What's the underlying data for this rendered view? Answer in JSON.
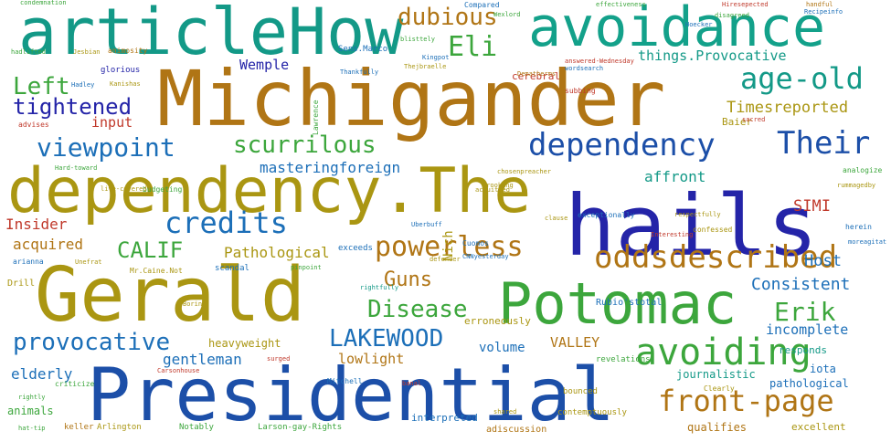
{
  "words": [
    {
      "text": "Michigander",
      "color": "#b07515"
    },
    {
      "text": "Presidential",
      "color": "#1c4fa8"
    },
    {
      "text": "dependency.The",
      "color": "#aa9612"
    },
    {
      "text": "Gerald",
      "color": "#aa9612"
    },
    {
      "text": "hails",
      "color": "#2424a8"
    },
    {
      "text": "articleHow",
      "color": "#139987"
    },
    {
      "text": "Potomac",
      "color": "#3ca63c"
    },
    {
      "text": "avoidance",
      "color": "#13a18a"
    },
    {
      "text": "avoiding",
      "color": "#3ca63c"
    },
    {
      "text": "dependency",
      "color": "#1c4fa8"
    },
    {
      "text": "oddsdescribed",
      "color": "#b07515"
    },
    {
      "text": "front-page",
      "color": "#b07515"
    },
    {
      "text": "Their",
      "color": "#1c4fa8"
    },
    {
      "text": "age-old",
      "color": "#139987"
    },
    {
      "text": "viewpoint",
      "color": "#1c6fb8"
    },
    {
      "text": "credits",
      "color": "#1c6fb8"
    },
    {
      "text": "powerless",
      "color": "#b07515"
    },
    {
      "text": "scurrilous",
      "color": "#3ca63c"
    },
    {
      "text": "provocative",
      "color": "#1c6fb8"
    },
    {
      "text": "LAKEWOOD",
      "color": "#1c6fb8"
    },
    {
      "text": "Disease",
      "color": "#3ca63c"
    },
    {
      "text": "Erik",
      "color": "#3ca63c"
    },
    {
      "text": "Left",
      "color": "#3ca63c"
    },
    {
      "text": "tightened",
      "color": "#2424a8"
    },
    {
      "text": "dubious",
      "color": "#b07515"
    },
    {
      "text": "Eli",
      "color": "#3ca63c"
    },
    {
      "text": "CALIF",
      "color": "#3ca63c"
    },
    {
      "text": "Guns",
      "color": "#b07515"
    },
    {
      "text": "Consistent",
      "color": "#1c6fb8"
    },
    {
      "text": "things.Provocative",
      "color": "#139987"
    },
    {
      "text": "Timesreported",
      "color": "#aa9612"
    },
    {
      "text": "masteringforeign",
      "color": "#1c6fb8"
    },
    {
      "text": "affront",
      "color": "#139987"
    },
    {
      "text": "Pathological",
      "color": "#aa9612"
    },
    {
      "text": "acquired",
      "color": "#b07515"
    },
    {
      "text": "Insider",
      "color": "#c0392b"
    },
    {
      "text": "Host",
      "color": "#1c6fb8"
    },
    {
      "text": "SIMI",
      "color": "#c0392b"
    },
    {
      "text": "VALLEY",
      "color": "#b07515"
    },
    {
      "text": "incomplete",
      "color": "#1c6fb8"
    },
    {
      "text": "gentleman",
      "color": "#1c6fb8"
    },
    {
      "text": "elderly",
      "color": "#1c6fb8"
    },
    {
      "text": "lowlight",
      "color": "#b07515"
    },
    {
      "text": "volume",
      "color": "#1c6fb8"
    },
    {
      "text": "heavyweight",
      "color": "#aa9612"
    },
    {
      "text": "input",
      "color": "#c0392b"
    },
    {
      "text": "Wemple",
      "color": "#2424a8"
    },
    {
      "text": "Nich",
      "color": "#aa9612"
    },
    {
      "text": "journalistic",
      "color": "#139987"
    },
    {
      "text": "pathological",
      "color": "#1c6fb8"
    },
    {
      "text": "qualifies",
      "color": "#b07515"
    },
    {
      "text": "excellent",
      "color": "#aa9612"
    },
    {
      "text": "animals",
      "color": "#3ca63c"
    },
    {
      "text": "responds",
      "color": "#139987"
    },
    {
      "text": "erroneously",
      "color": "#aa9612"
    },
    {
      "text": "iota",
      "color": "#1c6fb8"
    },
    {
      "text": "Baier",
      "color": "#aa9612"
    },
    {
      "text": "cerebral",
      "color": "#c0392b"
    },
    {
      "text": "Clearly",
      "color": "#aa9612"
    },
    {
      "text": "interpreted",
      "color": "#1c6fb8"
    },
    {
      "text": "adiscussion",
      "color": "#b07515"
    },
    {
      "text": "contemptuously",
      "color": "#aa9612"
    },
    {
      "text": "Arlington",
      "color": "#aa9612"
    },
    {
      "text": "Larson-gay-Rights",
      "color": "#3ca63c"
    },
    {
      "text": "bounced",
      "color": "#aa9612"
    },
    {
      "text": "revelations",
      "color": "#3ca63c"
    },
    {
      "text": "Drill",
      "color": "#aa9612"
    },
    {
      "text": "arianna",
      "color": "#1c6fb8"
    },
    {
      "text": "scandal",
      "color": "#1c6fb8"
    },
    {
      "text": "defender",
      "color": "#aa9612"
    },
    {
      "text": "Compared",
      "color": "#1c6fb8"
    },
    {
      "text": "glorious",
      "color": "#2424a8"
    },
    {
      "text": "advises",
      "color": "#c0392b"
    },
    {
      "text": "animosity",
      "color": "#b07515"
    },
    {
      "text": "exceeds",
      "color": "#1c6fb8"
    },
    {
      "text": "Rubio'stotal",
      "color": "#1c6fb8"
    },
    {
      "text": "exceptionally",
      "color": "#1c6fb8"
    },
    {
      "text": "confessed",
      "color": "#aa9612"
    },
    {
      "text": "Lawrence",
      "color": "#3ca63c"
    },
    {
      "text": "acquitted",
      "color": "#aa9612"
    },
    {
      "text": "Sens.Marco",
      "color": "#1c6fb8"
    },
    {
      "text": "Thankfully",
      "color": "#1c6fb8"
    },
    {
      "text": "Cuomos",
      "color": "#1c6fb8"
    },
    {
      "text": "subbing",
      "color": "#c0392b"
    },
    {
      "text": "blisttely",
      "color": "#3ca63c"
    },
    {
      "text": "Notably",
      "color": "#3ca63c"
    },
    {
      "text": "rightfully",
      "color": "#139987"
    },
    {
      "text": "Mr.Caine.Not",
      "color": "#aa9612"
    },
    {
      "text": "Mitchell",
      "color": "#1c6fb8"
    },
    {
      "text": "keller",
      "color": "#b07515"
    },
    {
      "text": "criticize",
      "color": "#3ca63c"
    },
    {
      "text": "analogize",
      "color": "#3ca63c"
    },
    {
      "text": "herein",
      "color": "#1c6fb8"
    },
    {
      "text": "moreagitat",
      "color": "#1c6fb8"
    },
    {
      "text": "sacred",
      "color": "#c0392b"
    },
    {
      "text": "budgeting",
      "color": "#3ca63c"
    },
    {
      "text": "Kanishas",
      "color": "#aa9612"
    },
    {
      "text": "Hadley",
      "color": "#1c6fb8"
    },
    {
      "text": "Jesbian",
      "color": "#aa9612"
    },
    {
      "text": "hadlifted",
      "color": "#3ca63c"
    },
    {
      "text": "Thejbraelle",
      "color": "#aa9612"
    },
    {
      "text": "condemnation",
      "color": "#3ca63c"
    },
    {
      "text": "effectiveness",
      "color": "#3ca63c"
    },
    {
      "text": "Hiresepected",
      "color": "#c0392b"
    },
    {
      "text": "handful",
      "color": "#b07515"
    },
    {
      "text": "CNNyesterday",
      "color": "#1c6fb8"
    },
    {
      "text": "shared",
      "color": "#aa9612"
    },
    {
      "text": "rightly",
      "color": "#3ca63c"
    },
    {
      "text": "hat-tip",
      "color": "#3ca63c"
    },
    {
      "text": "Carsonhouse",
      "color": "#c0392b"
    },
    {
      "text": "Uberbuff",
      "color": "#1c6fb8"
    },
    {
      "text": "Unefrat",
      "color": "#aa9612"
    },
    {
      "text": "banal",
      "color": "#c0392b"
    },
    {
      "text": "surged",
      "color": "#c0392b"
    },
    {
      "text": "Boring",
      "color": "#aa9612"
    },
    {
      "text": "pinpoint",
      "color": "#3ca63c"
    },
    {
      "text": "clause",
      "color": "#aa9612"
    },
    {
      "text": "Brooking",
      "color": "#aa9612"
    },
    {
      "text": "chosenpreacher",
      "color": "#aa9612"
    },
    {
      "text": "live-covered",
      "color": "#aa9612"
    },
    {
      "text": "Dematherms",
      "color": "#b07515"
    },
    {
      "text": "Recipeinfo",
      "color": "#1c6fb8"
    },
    {
      "text": "disagreed",
      "color": "#3ca63c"
    },
    {
      "text": "Wexlord",
      "color": "#3ca63c"
    },
    {
      "text": "respectfully",
      "color": "#aa9612"
    },
    {
      "text": "Interesting",
      "color": "#c0392b"
    },
    {
      "text": "Kingpot",
      "color": "#1c6fb8"
    },
    {
      "text": "Hard-toward",
      "color": "#3ca63c"
    },
    {
      "text": "wordsearch",
      "color": "#1c6fb8"
    },
    {
      "text": "answered-Wednesday",
      "color": "#c0392b"
    },
    {
      "text": "Hoecker",
      "color": "#1c6fb8"
    },
    {
      "text": "rummagedby",
      "color": "#aa9612"
    }
  ]
}
